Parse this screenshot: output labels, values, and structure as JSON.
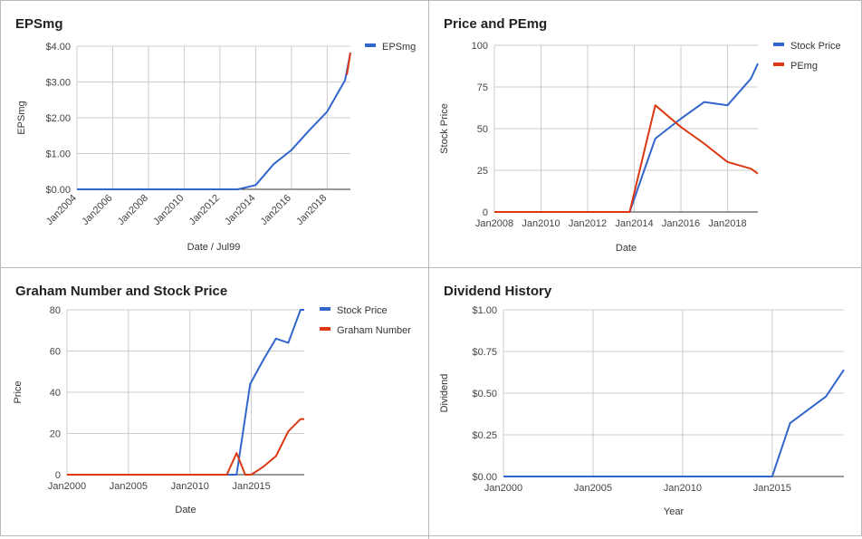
{
  "colors": {
    "blue": "#3366cc",
    "red": "#dc3912"
  },
  "chart_data": [
    {
      "id": "eps",
      "type": "line",
      "title": "EPSmg",
      "xlabel": "Date / Jul99",
      "ylabel": "EPSmg",
      "xticks": [
        "Jan2004",
        "Jan2006",
        "Jan2008",
        "Jan2010",
        "Jan2012",
        "Jan2014",
        "Jan2016",
        "Jan2018"
      ],
      "xlim": [
        2004.0,
        2019.3
      ],
      "ylim": [
        0,
        4
      ],
      "yticks": [
        {
          "v": 0,
          "label": "$0.00"
        },
        {
          "v": 1,
          "label": "$1.00"
        },
        {
          "v": 2,
          "label": "$2.00"
        },
        {
          "v": 3,
          "label": "$3.00"
        },
        {
          "v": 4,
          "label": "$4.00"
        }
      ],
      "legend_position": "right",
      "series": [
        {
          "name": "EPSmg",
          "color": "#3366cc",
          "x": [
            2004,
            2013,
            2014,
            2015,
            2016,
            2017,
            2018,
            2019,
            2019.3
          ],
          "y": [
            0,
            0,
            0.12,
            0.7,
            1.1,
            1.65,
            2.17,
            3.05,
            3.82
          ]
        },
        {
          "name": "",
          "color": "#dc3912",
          "x": [
            2019.1,
            2019.3
          ],
          "y": [
            3.2,
            3.82
          ],
          "legend": false
        }
      ]
    },
    {
      "id": "pe",
      "type": "line",
      "title": "Price and PEmg",
      "xlabel": "Date",
      "ylabel": "Stock Price",
      "xticks": [
        "Jan2008",
        "Jan2010",
        "Jan2012",
        "Jan2014",
        "Jan2016",
        "Jan2018"
      ],
      "xlim": [
        2008.0,
        2019.3
      ],
      "ylim": [
        0,
        100
      ],
      "yticks": [
        {
          "v": 0,
          "label": "0"
        },
        {
          "v": 25,
          "label": "25"
        },
        {
          "v": 50,
          "label": "50"
        },
        {
          "v": 75,
          "label": "75"
        },
        {
          "v": 100,
          "label": "100"
        }
      ],
      "legend_position": "right",
      "series": [
        {
          "name": "Stock Price",
          "color": "#3366cc",
          "x": [
            2008,
            2013.8,
            2014.9,
            2016,
            2017,
            2018,
            2019,
            2019.3
          ],
          "y": [
            0,
            0,
            44,
            56,
            66,
            64,
            80,
            89
          ]
        },
        {
          "name": "PEmg",
          "color": "#dc3912",
          "x": [
            2008,
            2013.8,
            2014.9,
            2016,
            2017,
            2018,
            2019,
            2019.3
          ],
          "y": [
            0,
            0,
            64,
            51,
            41,
            30,
            26,
            23
          ]
        }
      ]
    },
    {
      "id": "graham",
      "type": "line",
      "title": "Graham Number and Stock Price",
      "xlabel": "Date",
      "ylabel": "Price",
      "xticks": [
        "Jan2000",
        "Jan2005",
        "Jan2010",
        "Jan2015"
      ],
      "xlim": [
        2000.0,
        2019.3
      ],
      "ylim": [
        0,
        80
      ],
      "yticks": [
        {
          "v": 0,
          "label": "0"
        },
        {
          "v": 20,
          "label": "20"
        },
        {
          "v": 40,
          "label": "40"
        },
        {
          "v": 60,
          "label": "60"
        },
        {
          "v": 80,
          "label": "80"
        }
      ],
      "legend_position": "right",
      "series": [
        {
          "name": "Stock Price",
          "color": "#3366cc",
          "x": [
            2000,
            2013.8,
            2014.9,
            2016,
            2017,
            2018,
            2019,
            2019.3
          ],
          "y": [
            0,
            0,
            44,
            56,
            66,
            64,
            80,
            80
          ]
        },
        {
          "name": "Graham Number",
          "color": "#dc3912",
          "x": [
            2000,
            2013,
            2013.8,
            2014.5,
            2015,
            2016,
            2017,
            2018,
            2019,
            2019.3
          ],
          "y": [
            0,
            0,
            10.5,
            0,
            0,
            4,
            9,
            21,
            27,
            27
          ]
        }
      ]
    },
    {
      "id": "dividend",
      "type": "line",
      "title": "Dividend History",
      "xlabel": "Year",
      "ylabel": "Dividend",
      "xticks": [
        "Jan2000",
        "Jan2005",
        "Jan2010",
        "Jan2015"
      ],
      "xlim": [
        2000.0,
        2019.0
      ],
      "ylim": [
        0,
        1
      ],
      "yticks": [
        {
          "v": 0,
          "label": "$0.00"
        },
        {
          "v": 0.25,
          "label": "$0.25"
        },
        {
          "v": 0.5,
          "label": "$0.50"
        },
        {
          "v": 0.75,
          "label": "$0.75"
        },
        {
          "v": 1,
          "label": "$1.00"
        }
      ],
      "legend_position": "none",
      "series": [
        {
          "name": "",
          "color": "#3366cc",
          "x": [
            2000,
            2015,
            2016,
            2018,
            2019
          ],
          "y": [
            0,
            0,
            0.32,
            0.48,
            0.64
          ]
        }
      ]
    }
  ]
}
